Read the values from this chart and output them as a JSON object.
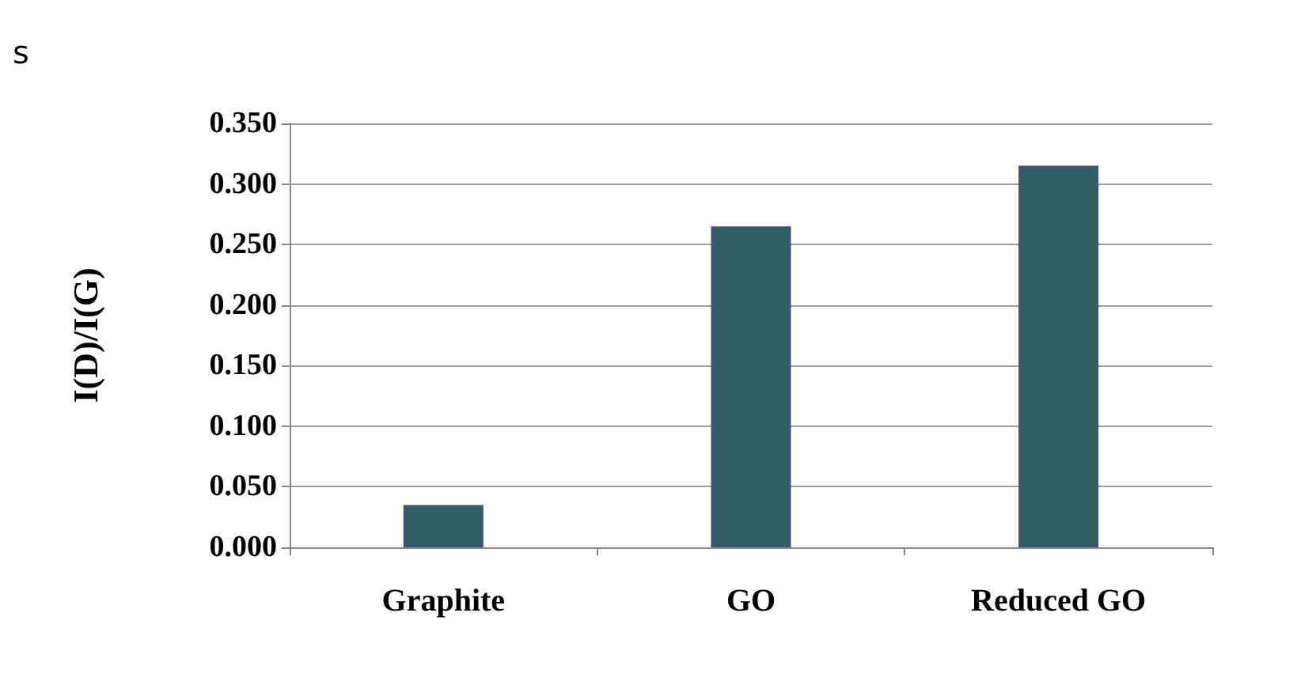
{
  "chart_data": {
    "type": "bar",
    "ylabel": "I(D)/I(G)",
    "annotations": [
      "s"
    ],
    "categories": [
      "Graphite",
      "GO",
      "Reduced GO"
    ],
    "values": [
      0.035,
      0.265,
      0.315
    ],
    "color": "#2f5f63",
    "ylim": [
      0,
      0.35
    ],
    "yticks": [
      {
        "value": 0,
        "label": "0.000"
      },
      {
        "value": 0.05,
        "label": "0.050"
      },
      {
        "value": 0.1,
        "label": "0.100"
      },
      {
        "value": 0.15,
        "label": "0.150"
      },
      {
        "value": 0.2,
        "label": "0.200"
      },
      {
        "value": 0.25,
        "label": "0.250"
      },
      {
        "value": 0.3,
        "label": "0.300"
      },
      {
        "value": 0.35,
        "label": "0.350"
      }
    ],
    "grid": true
  }
}
